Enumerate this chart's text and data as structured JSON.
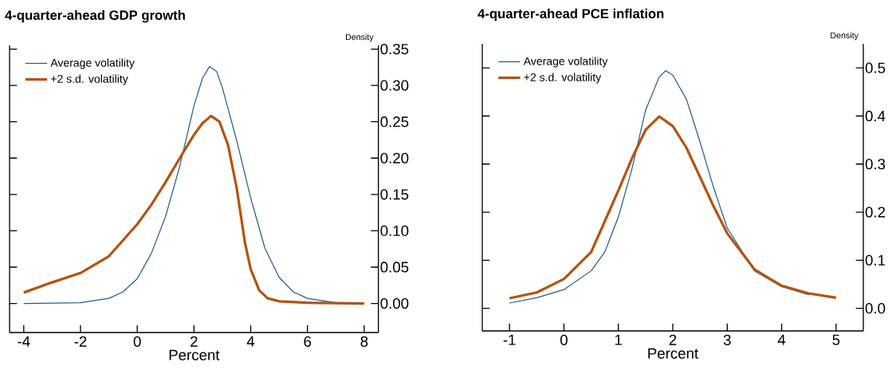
{
  "chart_data": [
    {
      "type": "line",
      "title": "4-quarter-ahead GDP growth",
      "xlabel": "Percent",
      "ylabel": "Density",
      "legend": "top left",
      "xlim": [
        -4.5,
        8.5
      ],
      "ylim": [
        -0.04,
        0.355
      ],
      "xticks": [
        -4,
        -2,
        0,
        2,
        4,
        6,
        8
      ],
      "yticks": [
        {
          "value": 0,
          "label": "0.00"
        },
        {
          "value": 0.05,
          "label": "0.05"
        },
        {
          "value": 0.1,
          "label": "0.10"
        },
        {
          "value": 0.15,
          "label": "0.15"
        },
        {
          "value": 0.2,
          "label": "0.20"
        },
        {
          "value": 0.25,
          "label": "0.25"
        },
        {
          "value": 0.3,
          "label": "0.30"
        },
        {
          "value": 0.35,
          "label": "0.35"
        }
      ],
      "series": [
        {
          "name": "Average volatility",
          "color": "#1f5a96",
          "x": [
            -4,
            -2,
            -1,
            -0.5,
            0,
            0.5,
            1,
            1.5,
            2,
            2.3,
            2.55,
            2.8,
            3,
            3.5,
            4,
            4.5,
            5,
            5.5,
            6,
            7,
            8
          ],
          "values": [
            0,
            0.001,
            0.007,
            0.016,
            0.034,
            0.069,
            0.12,
            0.189,
            0.272,
            0.31,
            0.326,
            0.319,
            0.297,
            0.225,
            0.145,
            0.076,
            0.036,
            0.016,
            0.007,
            0.001,
            0
          ]
        },
        {
          "name": "+2 s.d. volatility",
          "color": "#b5530f",
          "x": [
            -4,
            -3,
            -2,
            -1,
            0,
            0.5,
            1,
            1.5,
            2,
            2.3,
            2.6,
            2.9,
            3.2,
            3.5,
            3.8,
            4,
            4.3,
            4.6,
            5,
            6,
            8
          ],
          "values": [
            0.015,
            0.029,
            0.042,
            0.065,
            0.109,
            0.136,
            0.167,
            0.2,
            0.232,
            0.248,
            0.258,
            0.25,
            0.218,
            0.16,
            0.083,
            0.047,
            0.018,
            0.007,
            0.003,
            0.001,
            0
          ]
        }
      ]
    },
    {
      "type": "line",
      "title": "4-quarter-ahead PCE inflation",
      "xlabel": "Percent",
      "ylabel": "Density",
      "legend": "top left",
      "xlim": [
        -1.5,
        5.5
      ],
      "ylim": [
        -0.047,
        0.55
      ],
      "xticks": [
        -1,
        0,
        1,
        2,
        3,
        4,
        5
      ],
      "yticks": [
        {
          "value": 0,
          "label": "0.0"
        },
        {
          "value": 0.1,
          "label": "0.1"
        },
        {
          "value": 0.2,
          "label": "0.2"
        },
        {
          "value": 0.3,
          "label": "0.3"
        },
        {
          "value": 0.4,
          "label": "0.4"
        },
        {
          "value": 0.5,
          "label": "0.5"
        }
      ],
      "series": [
        {
          "name": "Average volatility",
          "color": "#1f5a96",
          "x": [
            -1,
            -0.5,
            0,
            0.5,
            0.75,
            1,
            1.25,
            1.5,
            1.75,
            1.87,
            2,
            2.25,
            2.5,
            2.75,
            3,
            3.5,
            4,
            4.5
          ],
          "values": [
            0.011,
            0.022,
            0.039,
            0.078,
            0.117,
            0.19,
            0.29,
            0.412,
            0.481,
            0.494,
            0.485,
            0.435,
            0.346,
            0.251,
            0.167,
            0.078,
            0.045,
            0.028
          ]
        },
        {
          "name": "+2 s.d. volatility",
          "color": "#b5530f",
          "x": [
            -1,
            -0.5,
            0,
            0.5,
            1,
            1.25,
            1.5,
            1.75,
            2,
            2.25,
            2.5,
            2.75,
            3,
            3.5,
            4,
            4.5,
            5
          ],
          "values": [
            0.021,
            0.033,
            0.061,
            0.117,
            0.245,
            0.312,
            0.371,
            0.399,
            0.379,
            0.334,
            0.273,
            0.212,
            0.156,
            0.081,
            0.047,
            0.031,
            0.022
          ]
        }
      ]
    }
  ]
}
